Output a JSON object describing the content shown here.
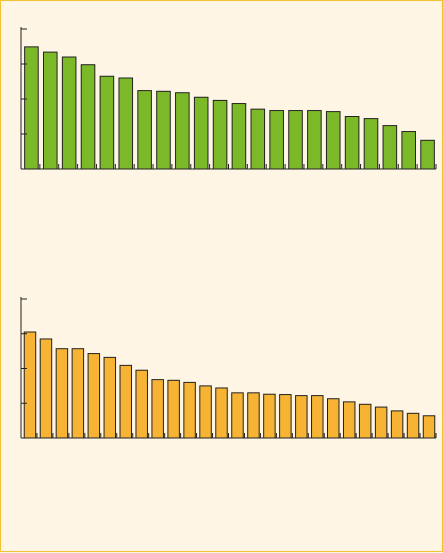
{
  "colors": {
    "background": "#fef5e4",
    "border": "#f2c230",
    "axis": "#222222",
    "top_fill": "#7cb928",
    "bottom_fill": "#f6b334"
  },
  "chart_data": [
    {
      "type": "bar",
      "title": "",
      "xlabel": "",
      "ylabel": "",
      "ylim": [
        0,
        4
      ],
      "y_ticks": [
        0,
        1,
        2,
        3,
        4
      ],
      "grid": false,
      "values": [
        3.49,
        3.34,
        3.2,
        2.98,
        2.65,
        2.6,
        2.24,
        2.22,
        2.18,
        2.05,
        1.96,
        1.87,
        1.71,
        1.67,
        1.67,
        1.67,
        1.64,
        1.5,
        1.44,
        1.24,
        1.07,
        0.82
      ],
      "color": "#7cb928"
    },
    {
      "type": "bar",
      "title": "",
      "xlabel": "",
      "ylabel": "",
      "ylim": [
        0,
        4
      ],
      "y_ticks": [
        0,
        1,
        2,
        3,
        4
      ],
      "grid": false,
      "values": [
        3.05,
        2.85,
        2.57,
        2.57,
        2.43,
        2.32,
        2.09,
        1.95,
        1.68,
        1.66,
        1.6,
        1.5,
        1.44,
        1.3,
        1.3,
        1.26,
        1.25,
        1.22,
        1.22,
        1.13,
        1.04,
        0.97,
        0.89,
        0.78,
        0.71,
        0.64
      ]
    }
  ]
}
